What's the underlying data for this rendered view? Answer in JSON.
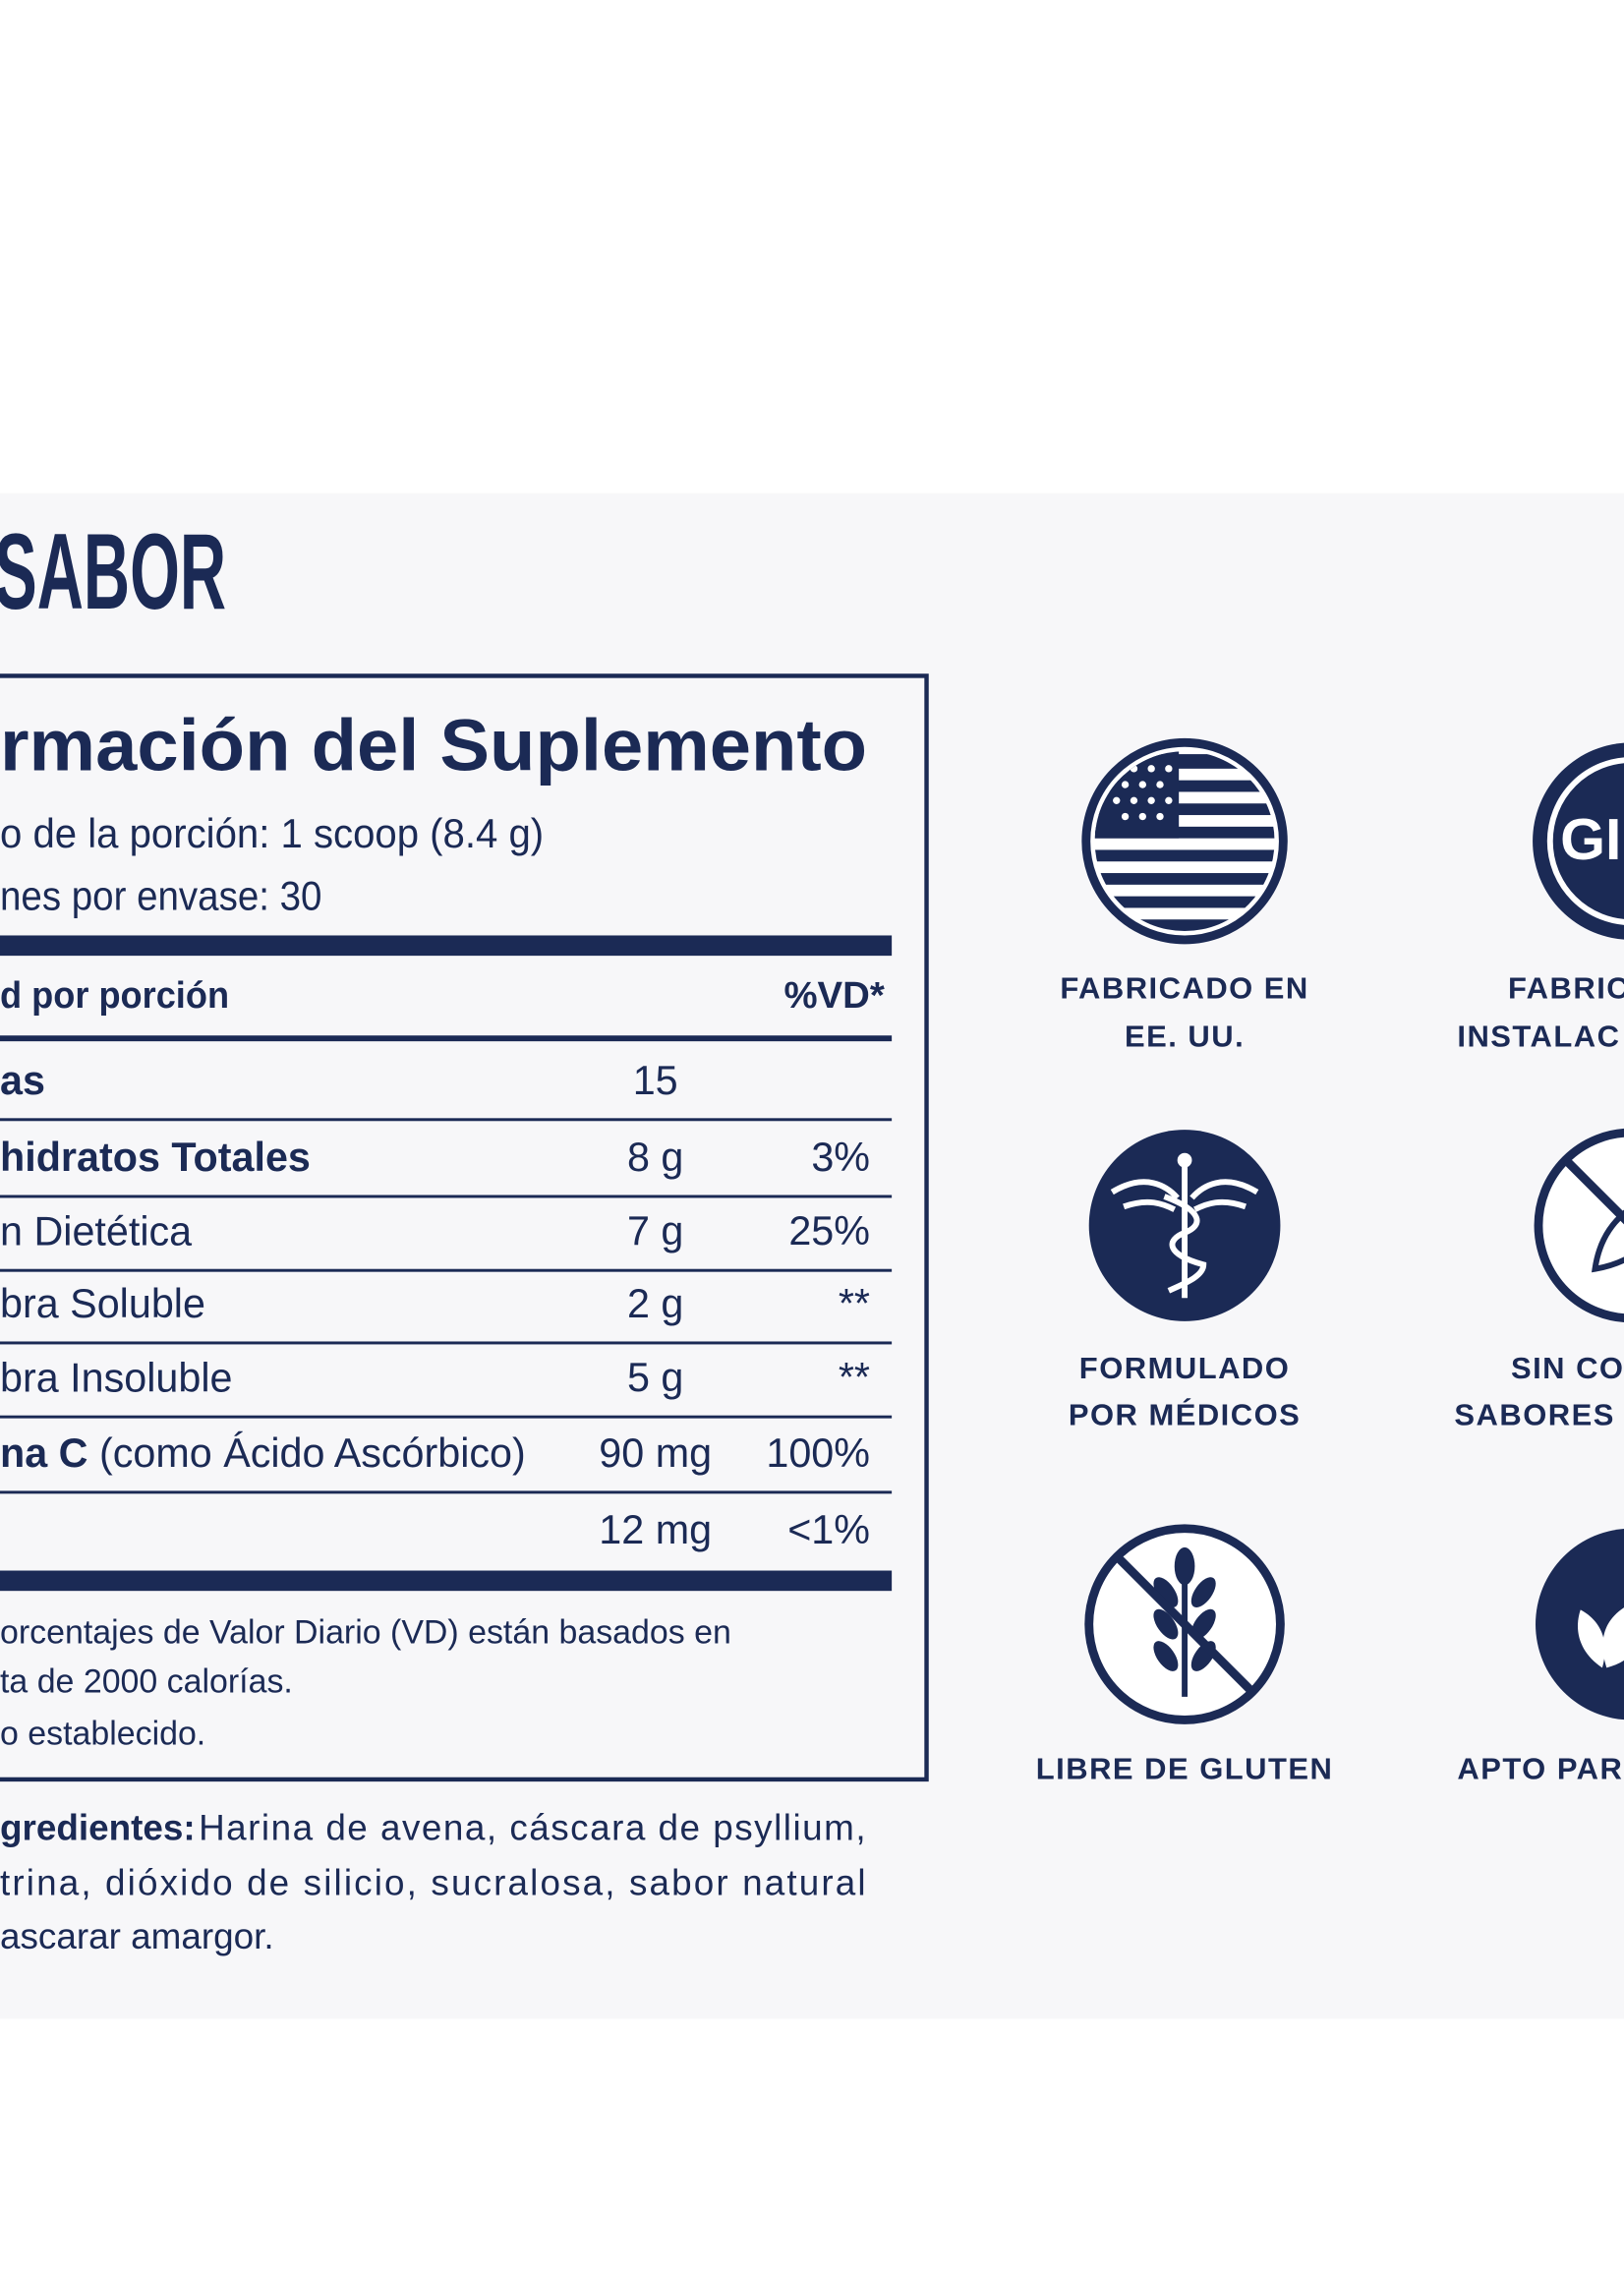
{
  "header": {
    "title": "SABOR"
  },
  "facts": {
    "title": "rmación del Suplemento",
    "serving_size": "o de la porción: 1 scoop (8.4 g)",
    "servings": "nes por envase: 30",
    "column_left": "d por porción",
    "column_right": "%VD*",
    "rows": [
      {
        "name": "as",
        "bold": true,
        "amount": "15"
      },
      {
        "name": "hidratos Totales",
        "bold": true,
        "amount": "8 g",
        "dv": "3%"
      },
      {
        "name": "n Dietética",
        "bold": false,
        "amount": "7 g",
        "dv": "25%"
      },
      {
        "name": "bra Soluble",
        "bold": false,
        "amount": "2 g",
        "dv": "**"
      },
      {
        "name": "bra Insoluble",
        "bold": false,
        "amount": "5 g",
        "dv": "**"
      },
      {
        "name": "na C",
        "note": "(como Ácido Ascórbico)",
        "bold": true,
        "amount": "90 mg",
        "dv": "100%"
      },
      {
        "amount": "12 mg",
        "dv": "<1%"
      }
    ],
    "footnotes": [
      "orcentajes de Valor Diario (VD) están basados en",
      "ta de 2000 calorías.",
      "o establecido."
    ]
  },
  "ingredients": {
    "label": "gredientes:",
    "lines": [
      "Harina de avena, cáscara de psyllium,",
      "trina, dióxido de silicio, sucralosa, sabor natural",
      "ascarar amargor."
    ]
  },
  "badges": [
    {
      "lines": [
        "FABRICADO EN",
        "EE. UU."
      ]
    },
    {
      "icon_text": "GI",
      "lines": [
        "FABRIC",
        "INSTALAC"
      ]
    },
    {
      "lines": [
        "FORMULADO",
        "POR MÉDICOS"
      ]
    },
    {
      "lines": [
        "SIN CO",
        "SABORES A"
      ]
    },
    {
      "lines": [
        "LIBRE DE GLUTEN"
      ]
    },
    {
      "lines": [
        "APTO PAR"
      ]
    }
  ]
}
